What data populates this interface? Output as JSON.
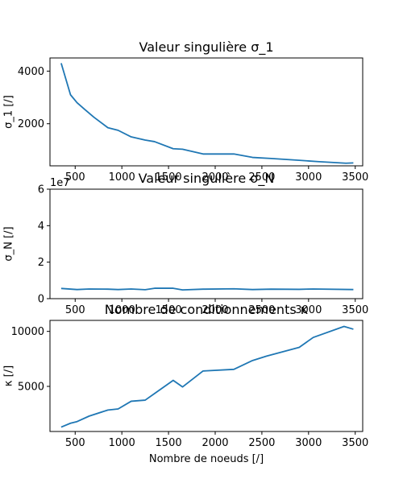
{
  "chart_data": [
    {
      "type": "line",
      "title": "Valeur singulière σ_1",
      "xlabel": "",
      "ylabel": "σ_1 [/]",
      "offset_text": "",
      "xlim": [
        230,
        3580
      ],
      "ylim": [
        400,
        4500
      ],
      "xticks": [
        500,
        1000,
        1500,
        2000,
        2500,
        3000,
        3500
      ],
      "xtick_labels": [
        "500",
        "1000",
        "1500",
        "2000",
        "2500",
        "3000",
        "3500"
      ],
      "yticks": [
        2000,
        4000
      ],
      "ytick_labels": [
        "2000",
        "4000"
      ],
      "series": [
        {
          "name": "σ_1",
          "x": [
            350,
            450,
            520,
            600,
            700,
            850,
            960,
            1100,
            1250,
            1350,
            1550,
            1650,
            1870,
            2200,
            2400,
            2600,
            2900,
            3100,
            3400,
            3480
          ],
          "y": [
            4300,
            3100,
            2800,
            2550,
            2250,
            1850,
            1750,
            1500,
            1380,
            1320,
            1050,
            1030,
            850,
            850,
            720,
            680,
            610,
            560,
            500,
            510
          ]
        }
      ]
    },
    {
      "type": "line",
      "title": "Valeur singulière σ_N",
      "xlabel": "",
      "ylabel": "σ_N [/]",
      "offset_text": "1e7",
      "xlim": [
        230,
        3580
      ],
      "ylim": [
        0,
        6
      ],
      "xticks": [
        500,
        1000,
        1500,
        2000,
        2500,
        3000,
        3500
      ],
      "xtick_labels": [
        "500",
        "1000",
        "1500",
        "2000",
        "2500",
        "3000",
        "3500"
      ],
      "yticks": [
        0,
        2,
        4,
        6
      ],
      "ytick_labels": [
        "0",
        "2",
        "4",
        "6"
      ],
      "series": [
        {
          "name": "σ_N",
          "x": [
            350,
            520,
            650,
            850,
            960,
            1100,
            1250,
            1350,
            1550,
            1650,
            1870,
            2200,
            2400,
            2600,
            2900,
            3050,
            3480
          ],
          "y": [
            0.56,
            0.5,
            0.53,
            0.52,
            0.5,
            0.53,
            0.49,
            0.57,
            0.57,
            0.48,
            0.52,
            0.54,
            0.5,
            0.52,
            0.51,
            0.53,
            0.5
          ]
        }
      ]
    },
    {
      "type": "line",
      "title": "Nombre de conditionnements κ",
      "xlabel": "Nombre de noeuds [/]",
      "ylabel": "κ [/]",
      "offset_text": "",
      "xlim": [
        230,
        3580
      ],
      "ylim": [
        900,
        11000
      ],
      "xticks": [
        500,
        1000,
        1500,
        2000,
        2500,
        3000,
        3500
      ],
      "xtick_labels": [
        "500",
        "1000",
        "1500",
        "2000",
        "2500",
        "3000",
        "3500"
      ],
      "yticks": [
        5000,
        10000
      ],
      "ytick_labels": [
        "5000",
        "10000"
      ],
      "series": [
        {
          "name": "κ",
          "x": [
            350,
            450,
            520,
            650,
            850,
            960,
            1100,
            1250,
            1350,
            1550,
            1650,
            1870,
            2200,
            2400,
            2550,
            2900,
            3050,
            3380,
            3480
          ],
          "y": [
            1300,
            1650,
            1800,
            2300,
            2850,
            2950,
            3650,
            3750,
            4350,
            5550,
            4950,
            6400,
            6550,
            7350,
            7750,
            8550,
            9450,
            10450,
            10200
          ]
        }
      ]
    }
  ]
}
